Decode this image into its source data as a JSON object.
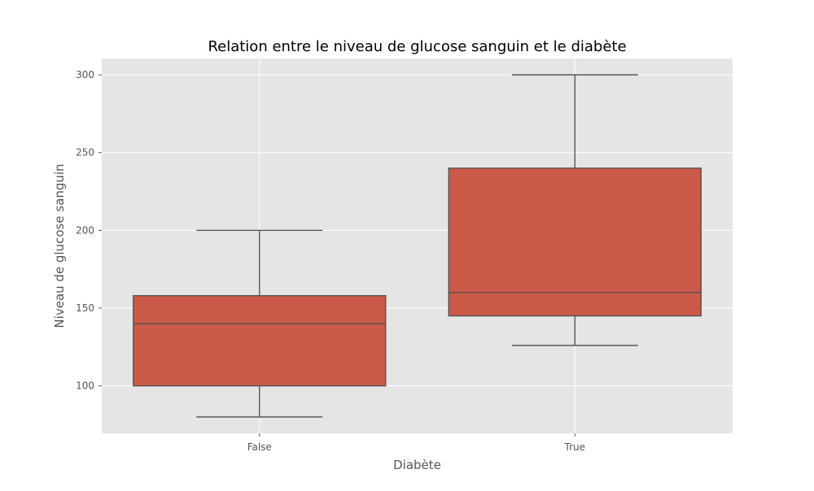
{
  "chart_data": {
    "type": "box",
    "title": "Relation entre le niveau de glucose sanguin et le diabète",
    "xlabel": "Diabète",
    "ylabel": "Niveau de glucose sanguin",
    "categories": [
      "False",
      "True"
    ],
    "boxes": [
      {
        "category": "False",
        "whisker_low": 80,
        "q1": 100,
        "median": 140,
        "q3": 158,
        "whisker_high": 200
      },
      {
        "category": "True",
        "whisker_low": 126,
        "q1": 145,
        "median": 160,
        "q3": 240,
        "whisker_high": 300
      }
    ],
    "ylim": [
      69.5,
      310.5
    ],
    "yticks": [
      100,
      150,
      200,
      250,
      300
    ],
    "grid": true,
    "colors": {
      "box_fill": "#cc5a48",
      "box_edge": "#4d4d4d",
      "plot_background": "#e5e5e5",
      "grid": "#ffffff"
    }
  }
}
